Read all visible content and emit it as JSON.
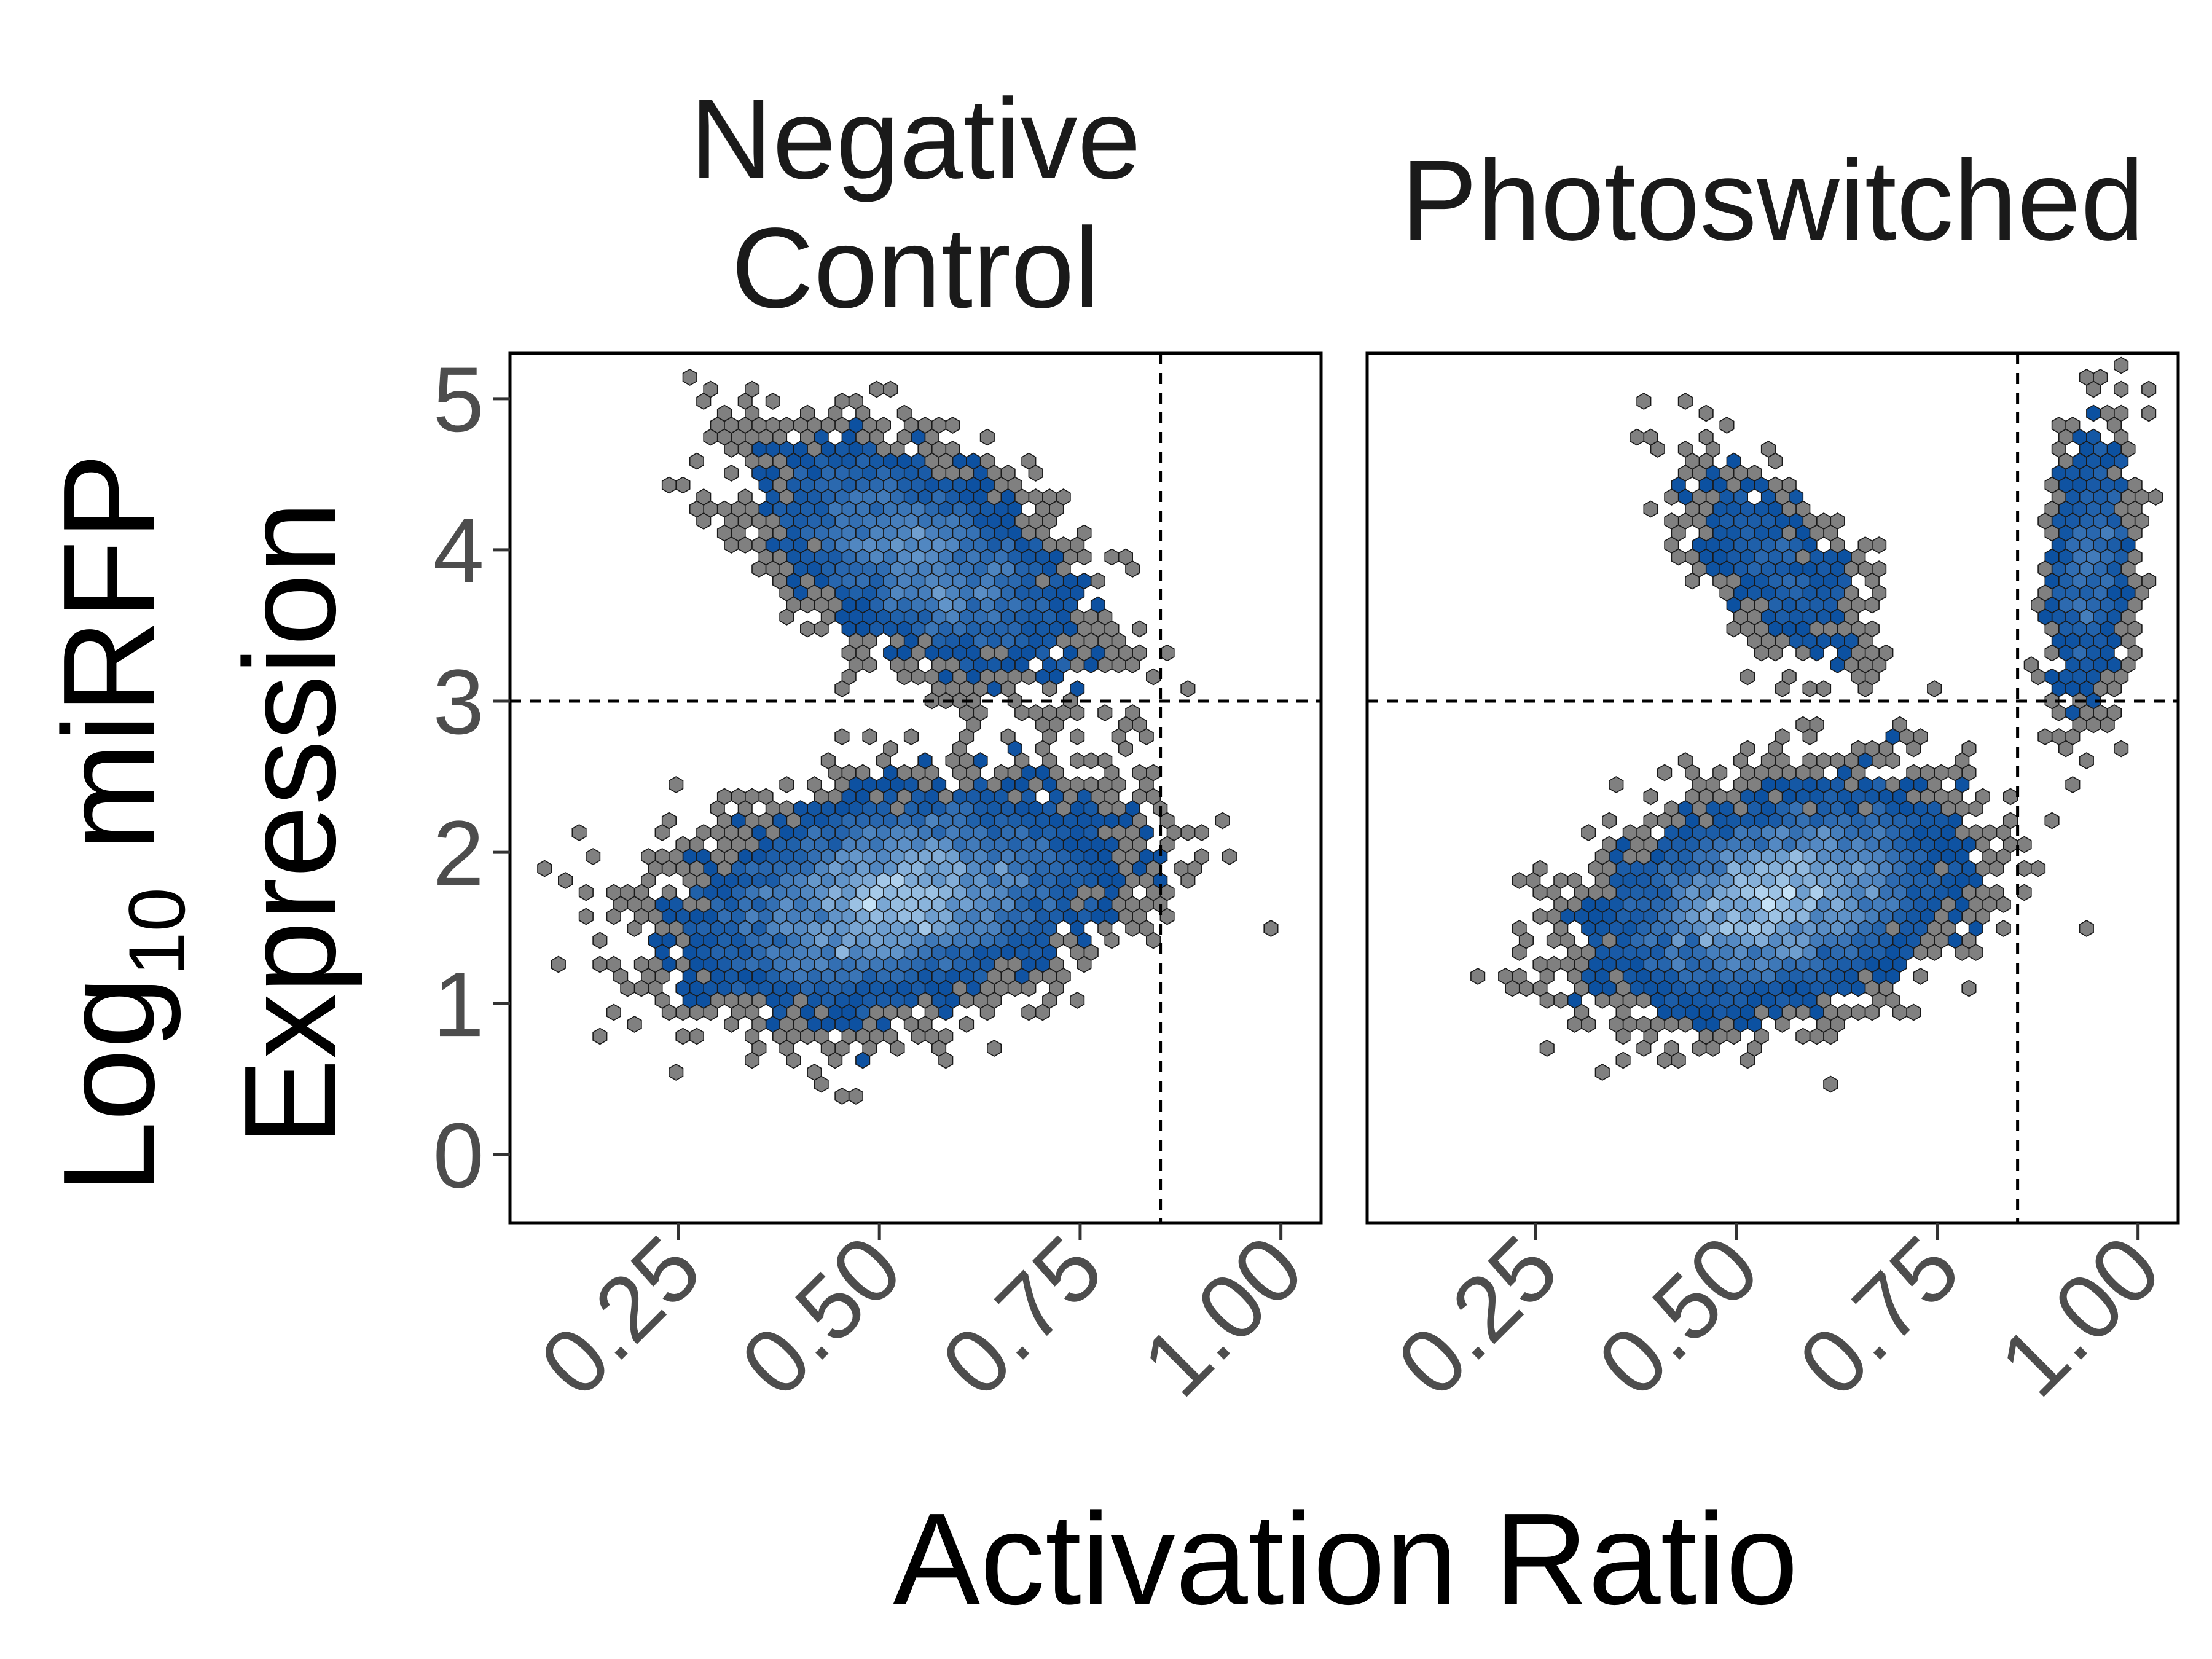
{
  "chart_data": {
    "type": "hexbin",
    "x_label": "Activation Ratio",
    "y_label_prefix": "Log",
    "y_label_subscript": "10",
    "y_label_rest": " miRFP",
    "y_label_line2": "Expression",
    "xlim": [
      0.04,
      1.05
    ],
    "ylim": [
      -0.45,
      5.3
    ],
    "x_ticks": [
      {
        "value": 0.25,
        "label": "0.25"
      },
      {
        "value": 0.5,
        "label": "0.50"
      },
      {
        "value": 0.75,
        "label": "0.75"
      },
      {
        "value": 1.0,
        "label": "1.00"
      }
    ],
    "y_ticks": [
      {
        "value": 0,
        "label": "0"
      },
      {
        "value": 1,
        "label": "1"
      },
      {
        "value": 2,
        "label": "2"
      },
      {
        "value": 3,
        "label": "3"
      },
      {
        "value": 4,
        "label": "4"
      },
      {
        "value": 5,
        "label": "5"
      }
    ],
    "thresholds": {
      "x": 0.85,
      "y": 3.0
    },
    "colors": {
      "sparse": "#808080",
      "low": "#0a4fa0",
      "high": "#c5e2f7",
      "outline": "#1a1a1a",
      "threshold_line": "#000000"
    },
    "panels": [
      {
        "title_lines": [
          "Negative",
          "Control"
        ],
        "clusters": [
          {
            "cx": 0.55,
            "cy": 3.95,
            "sx": 0.095,
            "sy": 0.38,
            "rho": -0.55,
            "n": 3400
          },
          {
            "cx": 0.52,
            "cy": 1.7,
            "sx": 0.12,
            "sy": 0.34,
            "rho": 0.3,
            "n": 7000
          }
        ]
      },
      {
        "title_lines": [
          "Photoswitched"
        ],
        "clusters": [
          {
            "cx": 0.55,
            "cy": 3.9,
            "sx": 0.055,
            "sy": 0.32,
            "rho": -0.6,
            "n": 700
          },
          {
            "cx": 0.94,
            "cy": 3.9,
            "sx": 0.025,
            "sy": 0.45,
            "rho": 0.25,
            "n": 900
          },
          {
            "cx": 0.55,
            "cy": 1.7,
            "sx": 0.1,
            "sy": 0.33,
            "rho": 0.3,
            "n": 6500
          }
        ]
      }
    ]
  }
}
